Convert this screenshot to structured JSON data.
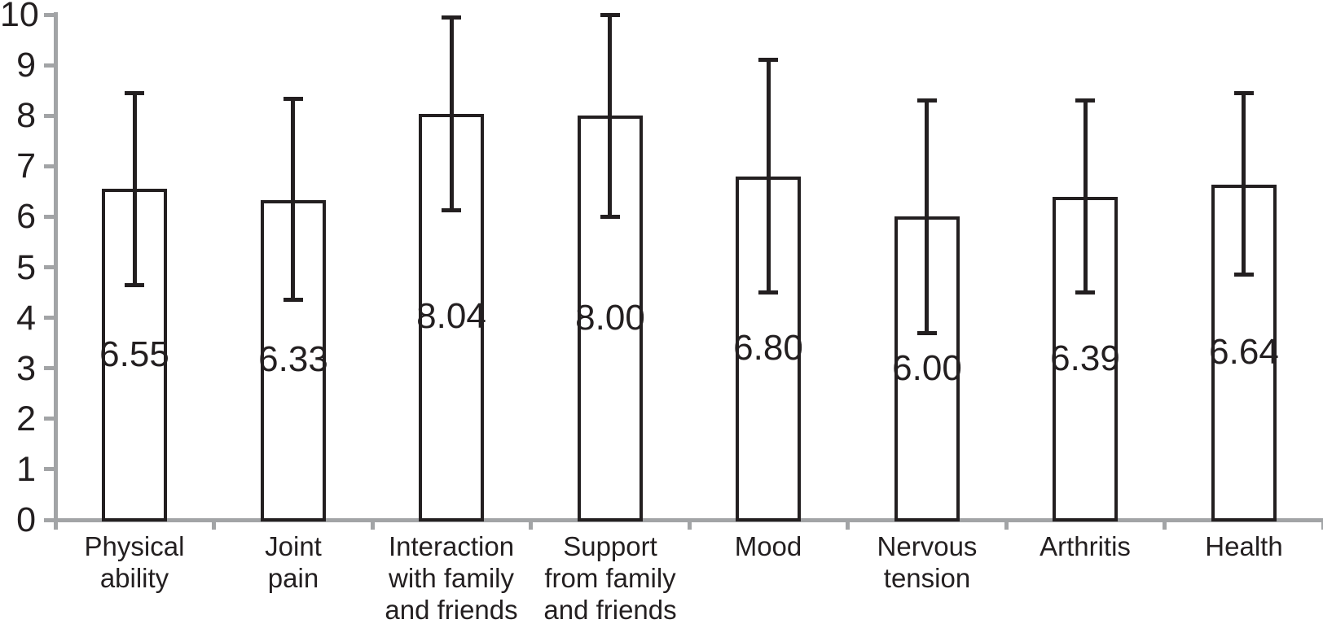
{
  "chart_data": {
    "type": "bar",
    "title": "",
    "xlabel": "",
    "ylabel": "",
    "categories": [
      "Physical ability",
      "Joint pain",
      "Interaction with family and friends",
      "Support from family and friends",
      "Mood",
      "Nervous tension",
      "Arthritis",
      "Health"
    ],
    "category_labels": [
      "Physical\nability",
      "Joint\npain",
      "Interaction\nwith family\nand friends",
      "Support\nfrom family\nand friends",
      "Mood",
      "Nervous\ntension",
      "Arthritis",
      "Health"
    ],
    "values": [
      6.55,
      6.33,
      8.04,
      8.0,
      6.8,
      6.0,
      6.39,
      6.64
    ],
    "data_labels": [
      "6.55",
      "6.33",
      "8.04",
      "8.00",
      "6.80",
      "6.00",
      "6.39",
      "6.64"
    ],
    "error_bars": {
      "high": [
        8.45,
        8.33,
        9.95,
        10.0,
        9.1,
        8.3,
        8.3,
        8.45
      ],
      "low": [
        4.65,
        4.35,
        6.13,
        6.0,
        4.5,
        3.7,
        4.5,
        4.85
      ]
    },
    "ylim": [
      0,
      10
    ],
    "yticks": [
      0,
      1,
      2,
      3,
      4,
      5,
      6,
      7,
      8,
      9,
      10
    ],
    "ytick_labels": [
      "0",
      "1",
      "2",
      "3",
      "4",
      "5",
      "6",
      "7",
      "8",
      "9",
      "10"
    ],
    "grid": false,
    "legend": false,
    "bar_style": {
      "fill": "#ffffff",
      "stroke": "#231f20"
    },
    "axis_color": "#a2a4a6",
    "text_color": "#231f20"
  }
}
